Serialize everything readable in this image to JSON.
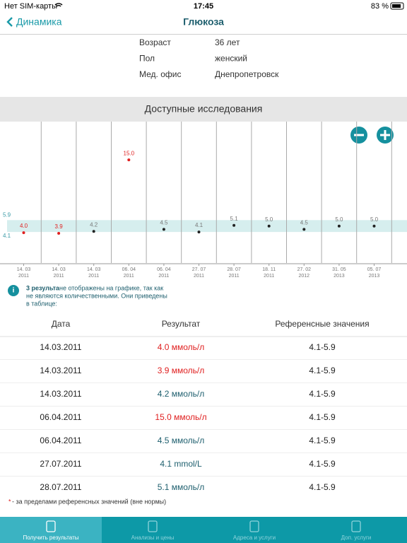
{
  "status_bar": {
    "carrier": "Нет SIM-карты",
    "time": "17:45",
    "battery": "83 %"
  },
  "nav": {
    "back": "Динамика",
    "title": "Глюкоза"
  },
  "patient": [
    {
      "label": "Возраст",
      "value": "36 лет"
    },
    {
      "label": "Пол",
      "value": "женский"
    },
    {
      "label": "Мед. офис",
      "value": "Днепропетровск"
    }
  ],
  "section_title": "Доступные исследования",
  "chart": {
    "type": "scatter",
    "categories": [
      [
        "14. 03",
        "2011"
      ],
      [
        "14. 03",
        "2011"
      ],
      [
        "14. 03",
        "2011"
      ],
      [
        "06. 04",
        "2011"
      ],
      [
        "06. 04",
        "2011"
      ],
      [
        "27. 07",
        "2011"
      ],
      [
        "28. 07",
        "2011"
      ],
      [
        "18. 11",
        "2011"
      ],
      [
        "27. 02",
        "2012"
      ],
      [
        "31. 05",
        "2013"
      ],
      [
        "05. 07",
        "2013"
      ]
    ],
    "values": [
      4.0,
      3.9,
      4.2,
      15.0,
      4.5,
      4.1,
      5.1,
      5.0,
      4.5,
      5.0,
      5.0
    ],
    "value_labels": [
      "4.0",
      "3.9",
      "4.2",
      "15.0",
      "4.5",
      "4.1",
      "5.1",
      "5.0",
      "4.5",
      "5.0",
      "5.0"
    ],
    "point_colors": [
      "#e02020",
      "#e02020",
      "#222222",
      "#e02020",
      "#222222",
      "#222222",
      "#222222",
      "#222222",
      "#222222",
      "#222222",
      "#222222"
    ],
    "label_colors": [
      "#e02020",
      "#e02020",
      "#777777",
      "#e02020",
      "#777777",
      "#777777",
      "#777777",
      "#777777",
      "#777777",
      "#777777",
      "#777777"
    ],
    "reference": {
      "low": 4.1,
      "high": 5.9,
      "color": "#d6eeee",
      "label_color": "#3a9aa6"
    },
    "ylim": [
      0,
      21
    ]
  },
  "note": {
    "icon": "i",
    "bold": "3 результа",
    "text": [
      "не отображены на графике, так как",
      "не являются количественными. Они приведены",
      "в таблице:"
    ]
  },
  "table": {
    "headers": [
      "Дата",
      "Результат",
      "Референсные значения"
    ],
    "rows": [
      {
        "date": "14.03.2011",
        "result": "4.0 ммоль/л",
        "reference": "4.1-5.9",
        "color": "#e02020"
      },
      {
        "date": "14.03.2011",
        "result": "3.9 ммоль/л",
        "reference": "4.1-5.9",
        "color": "#e02020"
      },
      {
        "date": "14.03.2011",
        "result": "4.2 ммоль/л",
        "reference": "4.1-5.9",
        "color": "#1e5f6e"
      },
      {
        "date": "06.04.2011",
        "result": "15.0 ммоль/л",
        "reference": "4.1-5.9",
        "color": "#e02020"
      },
      {
        "date": "06.04.2011",
        "result": "4.5 ммоль/л",
        "reference": "4.1-5.9",
        "color": "#1e5f6e"
      },
      {
        "date": "27.07.2011",
        "result": "4.1 mmol/L",
        "reference": "4.1-5.9",
        "color": "#1e5f6e"
      },
      {
        "date": "28.07.2011",
        "result": "5.1 ммоль/л",
        "reference": "4.1-5.9",
        "color": "#1e5f6e"
      }
    ]
  },
  "footnote": {
    "mark": "*",
    "text": " - за пределами референсных значений (вне нормы)"
  },
  "tabs": [
    "Получить результаты",
    "Анализы и цены",
    "Адреса и услуги",
    "Доп. услуги"
  ]
}
